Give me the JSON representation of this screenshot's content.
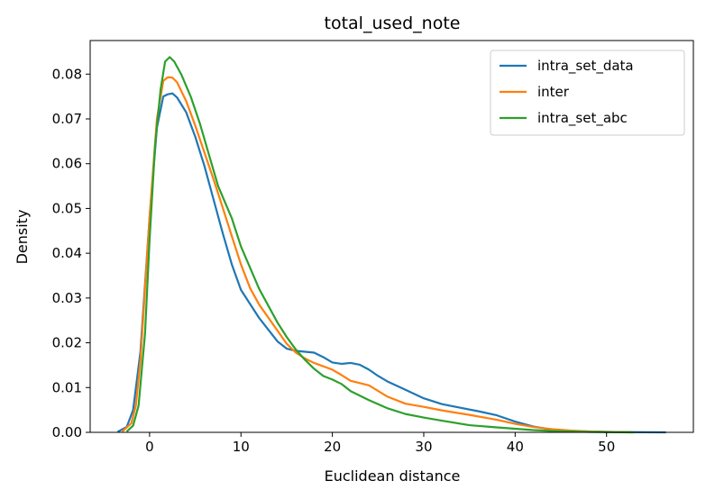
{
  "chart_data": {
    "type": "line",
    "title": "total_used_note",
    "xlabel": "Euclidean distance",
    "ylabel": "Density",
    "xlim": [
      -6.5,
      59.5
    ],
    "ylim": [
      0,
      0.0875
    ],
    "xticks": [
      0,
      10,
      20,
      30,
      40,
      50
    ],
    "yticks": [
      0.0,
      0.01,
      0.02,
      0.03,
      0.04,
      0.05,
      0.06,
      0.07,
      0.08
    ],
    "grid": false,
    "legend_position": "top-right",
    "series": [
      {
        "name": "intra_set_data",
        "color": "#1f77b4",
        "x": [
          -3.5,
          -2.5,
          -1.8,
          -1,
          0,
          0.8,
          1.5,
          2,
          2.5,
          3,
          4,
          5,
          6,
          7,
          8,
          9,
          10,
          12,
          14,
          15,
          16,
          17,
          18,
          19,
          20,
          21,
          22,
          23,
          24,
          25,
          26,
          28,
          30,
          32,
          34,
          36,
          38,
          40,
          42,
          44,
          46,
          48,
          50,
          52,
          54,
          56.5
        ],
        "y": [
          0.0001,
          0.0012,
          0.005,
          0.018,
          0.048,
          0.068,
          0.075,
          0.0755,
          0.0757,
          0.0748,
          0.0715,
          0.066,
          0.0595,
          0.052,
          0.0445,
          0.0375,
          0.0318,
          0.0255,
          0.0203,
          0.0187,
          0.0182,
          0.018,
          0.0178,
          0.0168,
          0.0156,
          0.0153,
          0.0155,
          0.0151,
          0.014,
          0.0126,
          0.0114,
          0.0095,
          0.0076,
          0.0063,
          0.0055,
          0.0047,
          0.0038,
          0.0024,
          0.0013,
          0.0006,
          0.0003,
          0.0002,
          0.0001,
          5e-05,
          2e-05,
          0.0
        ]
      },
      {
        "name": "inter",
        "color": "#ff7f0e",
        "x": [
          -3,
          -2,
          -1.5,
          -1,
          0,
          0.8,
          1.5,
          2,
          2.5,
          3,
          4,
          5,
          6,
          7,
          8,
          9,
          10,
          11,
          12,
          14,
          15,
          16,
          17,
          18,
          20,
          21,
          22,
          24,
          26,
          28,
          30,
          32,
          35,
          38,
          40,
          42,
          44,
          46,
          48,
          50,
          53
        ],
        "y": [
          0.0002,
          0.002,
          0.006,
          0.016,
          0.048,
          0.07,
          0.0785,
          0.0793,
          0.0792,
          0.0782,
          0.074,
          0.0685,
          0.0625,
          0.0565,
          0.0502,
          0.0438,
          0.0375,
          0.0322,
          0.0285,
          0.0227,
          0.0198,
          0.0178,
          0.0165,
          0.0155,
          0.014,
          0.0128,
          0.0115,
          0.0105,
          0.008,
          0.0064,
          0.0057,
          0.0049,
          0.0039,
          0.0028,
          0.0019,
          0.0012,
          0.0007,
          0.0004,
          0.0002,
          0.0001,
          0.0
        ]
      },
      {
        "name": "intra_set_abc",
        "color": "#2ca02c",
        "x": [
          -2.5,
          -1.8,
          -1.2,
          -0.5,
          0,
          0.6,
          1.2,
          1.7,
          2.2,
          2.7,
          3.5,
          4.5,
          5.5,
          6.5,
          7.5,
          9,
          10,
          12,
          14,
          15,
          16,
          17,
          18,
          19,
          20,
          21,
          22,
          24,
          26,
          28,
          30,
          32,
          35,
          38,
          40,
          42,
          44,
          46,
          48,
          50,
          53
        ],
        "y": [
          0.0002,
          0.0015,
          0.006,
          0.022,
          0.043,
          0.064,
          0.0765,
          0.0828,
          0.0838,
          0.0828,
          0.0798,
          0.075,
          0.069,
          0.062,
          0.055,
          0.0478,
          0.0415,
          0.032,
          0.0245,
          0.0213,
          0.0185,
          0.0162,
          0.0142,
          0.0126,
          0.0118,
          0.0108,
          0.0092,
          0.0072,
          0.0054,
          0.0041,
          0.0033,
          0.0026,
          0.0016,
          0.0011,
          0.0008,
          0.0005,
          0.0003,
          0.0002,
          0.0001,
          5e-05,
          0.0
        ]
      }
    ]
  }
}
